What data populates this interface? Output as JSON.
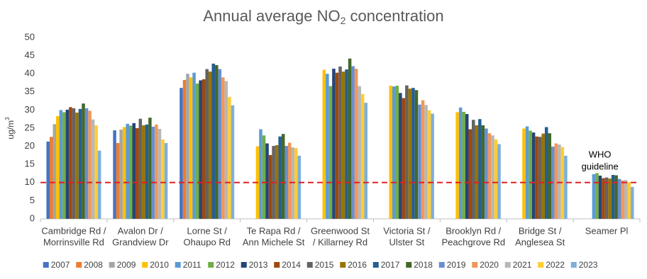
{
  "chart_data": {
    "type": "bar",
    "title": {
      "text": "Annual average NO",
      "sub": "2",
      "rest": " concentration"
    },
    "y_label": {
      "text": "ug/m",
      "sup": "3"
    },
    "categories": [
      [
        "Cambridge Rd /",
        "Morrinsville Rd"
      ],
      [
        "Avalon Dr /",
        "Grandview Dr"
      ],
      [
        "Lorne St /",
        "Ohaupo Rd"
      ],
      [
        "Te Rapa Rd /",
        "Ann Michele St"
      ],
      [
        "Greenwood St",
        "/ Killarney Rd"
      ],
      [
        "Victoria St /",
        "Ulster St"
      ],
      [
        "Brooklyn Rd /",
        "Peachgrove Rd"
      ],
      [
        "Bridge St /",
        "Anglesea St"
      ],
      [
        "Seamer Pl"
      ]
    ],
    "series": [
      {
        "name": "2007",
        "color": "#4472c4",
        "values": [
          21.3,
          24.4,
          36.1,
          null,
          null,
          null,
          null,
          null,
          null
        ]
      },
      {
        "name": "2008",
        "color": "#ed7d31",
        "values": [
          22.6,
          20.9,
          38.3,
          null,
          null,
          null,
          null,
          null,
          null
        ]
      },
      {
        "name": "2009",
        "color": "#a5a5a5",
        "values": [
          26.1,
          24.6,
          40.0,
          null,
          null,
          null,
          null,
          null,
          null
        ]
      },
      {
        "name": "2010",
        "color": "#ffc000",
        "values": [
          28.3,
          25.3,
          39.0,
          20.0,
          41.1,
          36.7,
          29.4,
          24.9,
          null
        ]
      },
      {
        "name": "2011",
        "color": "#5b9bd5",
        "values": [
          30.0,
          26.2,
          40.3,
          24.7,
          40.0,
          36.5,
          30.7,
          25.5,
          12.3
        ]
      },
      {
        "name": "2012",
        "color": "#70ad47",
        "values": [
          29.4,
          25.7,
          37.3,
          23.0,
          36.6,
          36.7,
          29.5,
          24.3,
          12.6
        ]
      },
      {
        "name": "2013",
        "color": "#264478",
        "values": [
          30.1,
          26.4,
          38.2,
          20.8,
          41.4,
          34.7,
          28.9,
          23.8,
          11.9
        ]
      },
      {
        "name": "2014",
        "color": "#9e480e",
        "values": [
          30.8,
          25.0,
          38.5,
          17.6,
          40.3,
          33.3,
          24.7,
          22.7,
          11.2
        ]
      },
      {
        "name": "2015",
        "color": "#636363",
        "values": [
          30.5,
          27.6,
          41.3,
          20.1,
          42.0,
          36.8,
          27.3,
          22.6,
          11.4
        ]
      },
      {
        "name": "2016",
        "color": "#997300",
        "values": [
          29.3,
          25.8,
          40.6,
          20.3,
          40.6,
          35.9,
          25.8,
          23.5,
          11.1
        ]
      },
      {
        "name": "2017",
        "color": "#255e91",
        "values": [
          30.3,
          26.0,
          42.8,
          22.7,
          41.2,
          36.1,
          27.5,
          25.3,
          12.1
        ]
      },
      {
        "name": "2018",
        "color": "#43682b",
        "values": [
          31.8,
          27.9,
          42.4,
          23.4,
          44.2,
          35.5,
          25.8,
          23.6,
          12.0
        ]
      },
      {
        "name": "2019",
        "color": "#698ed0",
        "values": [
          30.5,
          25.4,
          41.3,
          20.1,
          42.1,
          31.5,
          24.9,
          19.9,
          11.0
        ]
      },
      {
        "name": "2020",
        "color": "#f1975a",
        "values": [
          29.8,
          26.0,
          39.0,
          21.0,
          41.4,
          32.7,
          23.6,
          20.8,
          10.6
        ]
      },
      {
        "name": "2021",
        "color": "#b7b7b7",
        "values": [
          27.4,
          24.8,
          38.0,
          19.7,
          36.6,
          31.4,
          23.0,
          20.5,
          10.7
        ]
      },
      {
        "name": "2022",
        "color": "#ffcd33",
        "values": [
          25.8,
          21.9,
          33.6,
          19.5,
          34.4,
          29.9,
          21.9,
          19.8,
          10.1
        ]
      },
      {
        "name": "2023",
        "color": "#7cafdd",
        "values": [
          18.8,
          20.9,
          31.3,
          17.4,
          32.0,
          29.0,
          20.6,
          17.4,
          8.8
        ]
      }
    ],
    "ylim": [
      0,
      50
    ],
    "yticks": [
      0,
      5,
      10,
      15,
      20,
      25,
      30,
      35,
      40,
      45,
      50
    ],
    "grid": false,
    "reference_line": {
      "value": 10,
      "color": "#e02020",
      "label": [
        "WHO",
        "guideline"
      ]
    },
    "legend": "bottom"
  }
}
